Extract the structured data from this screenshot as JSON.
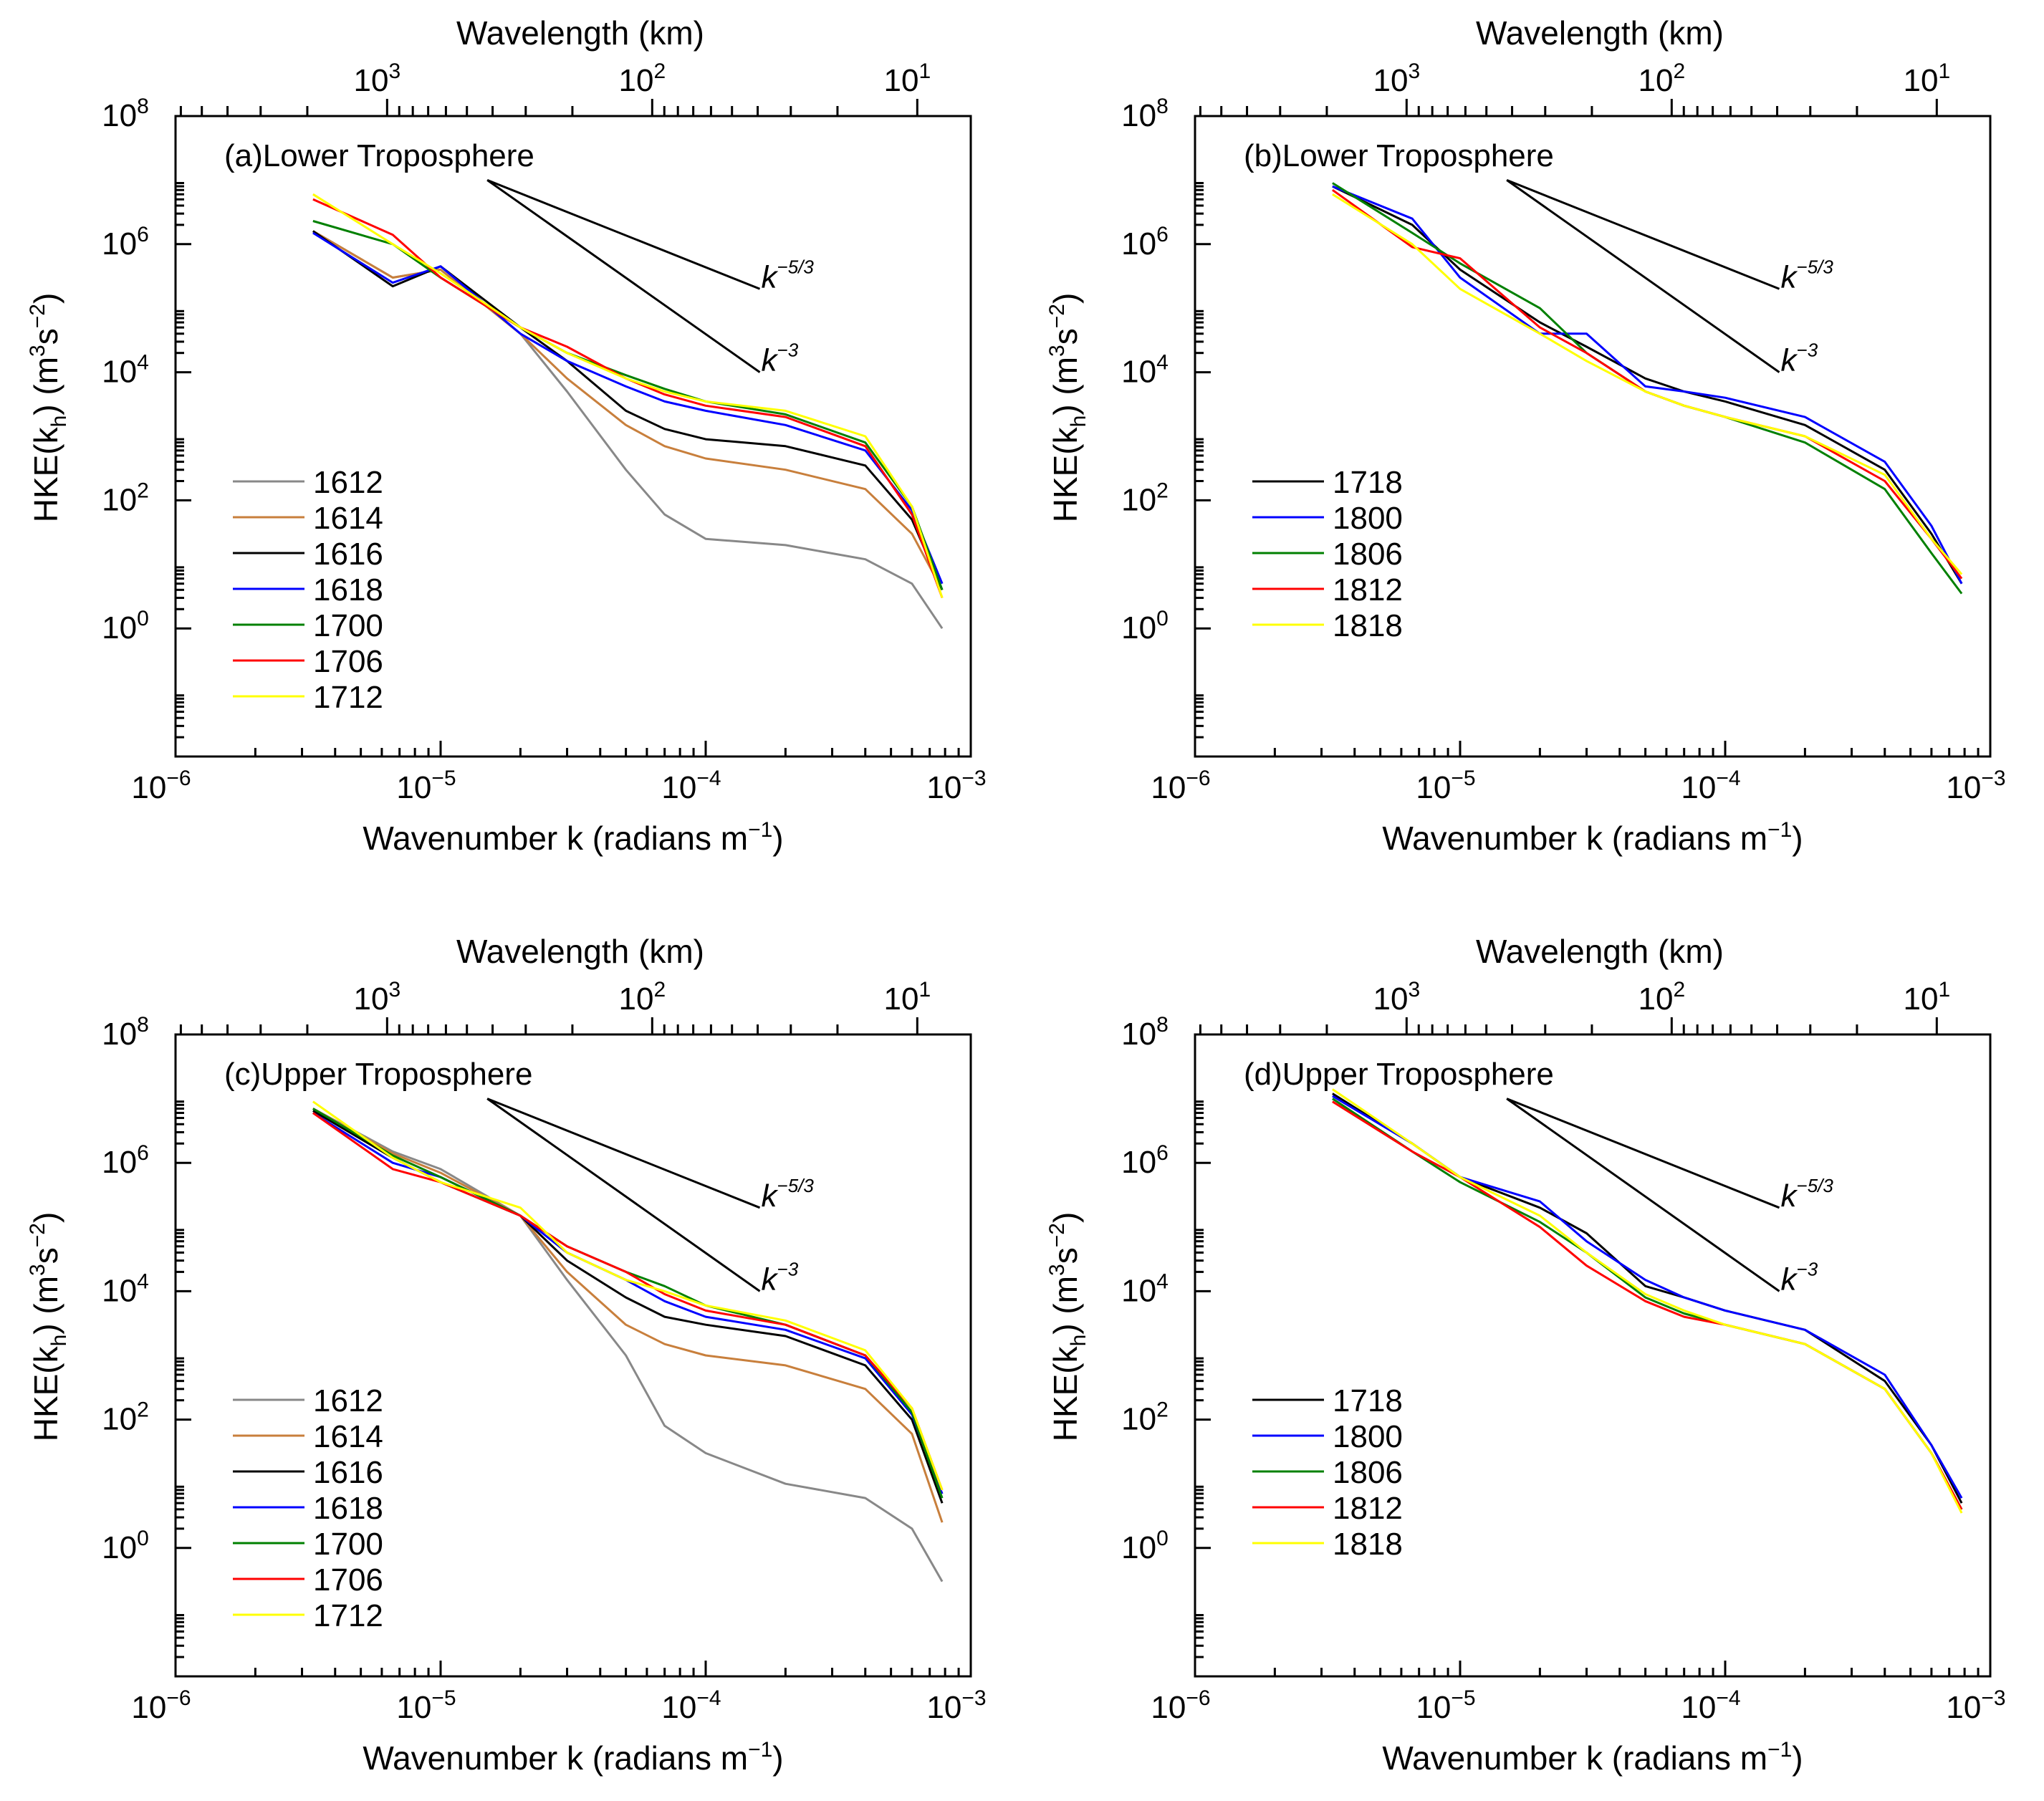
{
  "shared": {
    "top_axis_label": "Wavelength (km)",
    "x_axis_label_main": "Wavenumber k (radians m",
    "x_axis_label_exp": "−1",
    "x_axis_label_close": ")",
    "y_axis_label": {
      "a": "HKE(k",
      "b": "h",
      "c": ") (m",
      "d": "3",
      "e": "s",
      "f": "−2",
      "g": ")"
    },
    "x_ticks": [
      {
        "base": "10",
        "exp": "−6"
      },
      {
        "base": "10",
        "exp": "−5"
      },
      {
        "base": "10",
        "exp": "−4"
      },
      {
        "base": "10",
        "exp": "−3"
      }
    ],
    "top_ticks": [
      {
        "base": "10",
        "exp": "3"
      },
      {
        "base": "10",
        "exp": "2"
      },
      {
        "base": "10",
        "exp": "1"
      }
    ],
    "y_ticks": [
      {
        "base": "10",
        "exp": "0"
      },
      {
        "base": "10",
        "exp": "2"
      },
      {
        "base": "10",
        "exp": "4"
      },
      {
        "base": "10",
        "exp": "6"
      },
      {
        "base": "10",
        "exp": "8"
      }
    ],
    "slope_labels": {
      "k53": {
        "base": "k",
        "exp": "−5/3"
      },
      "k3": {
        "base": "k",
        "exp": "−3"
      }
    }
  },
  "colors": {
    "1612": "#888888",
    "1614": "#c87f3c",
    "1616": "#000000",
    "1618": "#0000ff",
    "1700": "#008000",
    "1706": "#ff0000",
    "1712": "#ffff00",
    "1718": "#000000",
    "1800": "#0000ff",
    "1806": "#008000",
    "1812": "#ff0000",
    "1818": "#ffff00"
  },
  "chart_data": [
    {
      "type": "line",
      "panel": "a",
      "title": "(a)Lower Troposphere",
      "xscale": "log",
      "yscale": "log",
      "xlim": [
        1e-06,
        0.001
      ],
      "ylim": [
        0.01,
        100000000.0
      ],
      "xlabel": "Wavenumber k (radians m−1)",
      "ylabel": "HKE(kh) (m3 s−2)",
      "top_xlabel": "Wavelength (km)",
      "legend": "bottom-left",
      "series": [
        {
          "name": "1612",
          "k": [
            3.3e-06,
            6.6e-06,
            1e-05,
            2e-05,
            3e-05,
            5e-05,
            7e-05,
            0.0001,
            0.0002,
            0.0004,
            0.0006,
            0.00078
          ],
          "hke": [
            1600000.0,
            300000.0,
            400000.0,
            40000.0,
            5000,
            300,
            60,
            25,
            20,
            12,
            5,
            1
          ]
        },
        {
          "name": "1614",
          "k": [
            3.3e-06,
            6.6e-06,
            1e-05,
            2e-05,
            3e-05,
            5e-05,
            7e-05,
            0.0001,
            0.0002,
            0.0004,
            0.0006,
            0.00078
          ],
          "hke": [
            1600000.0,
            300000.0,
            400000.0,
            40000.0,
            8000,
            1500,
            700,
            450,
            300,
            150,
            30,
            4
          ]
        },
        {
          "name": "1616",
          "k": [
            3.3e-06,
            6.6e-06,
            1e-05,
            2e-05,
            3e-05,
            5e-05,
            7e-05,
            0.0001,
            0.0002,
            0.0004,
            0.0006,
            0.00078
          ],
          "hke": [
            1600000.0,
            220000.0,
            450000.0,
            50000.0,
            15000,
            2500,
            1300,
            900,
            700,
            350,
            50,
            4
          ]
        },
        {
          "name": "1618",
          "k": [
            3.3e-06,
            6.6e-06,
            1e-05,
            2e-05,
            3e-05,
            5e-05,
            7e-05,
            0.0001,
            0.0002,
            0.0004,
            0.0006,
            0.00078
          ],
          "hke": [
            1500000.0,
            250000.0,
            450000.0,
            40000.0,
            15000,
            6000,
            3500,
            2500,
            1500,
            600,
            70,
            5
          ]
        },
        {
          "name": "1700",
          "k": [
            3.3e-06,
            6.6e-06,
            1e-05,
            2e-05,
            3e-05,
            5e-05,
            7e-05,
            0.0001,
            0.0002,
            0.0004,
            0.0006,
            0.00078
          ],
          "hke": [
            2300000.0,
            1000000.0,
            300000.0,
            50000.0,
            20000,
            9000,
            5500,
            3500,
            2200,
            800,
            80,
            4
          ]
        },
        {
          "name": "1706",
          "k": [
            3.3e-06,
            6.6e-06,
            1e-05,
            2e-05,
            3e-05,
            5e-05,
            7e-05,
            0.0001,
            0.0002,
            0.0004,
            0.0006,
            0.00078
          ],
          "hke": [
            5000000.0,
            1400000.0,
            300000.0,
            50000.0,
            25000,
            8000,
            4500,
            3000,
            2000,
            700,
            60,
            3
          ]
        },
        {
          "name": "1712",
          "k": [
            3.3e-06,
            6.6e-06,
            1e-05,
            2e-05,
            3e-05,
            5e-05,
            7e-05,
            0.0001,
            0.0002,
            0.0004,
            0.0006,
            0.00078
          ],
          "hke": [
            6000000.0,
            1000000.0,
            350000.0,
            50000.0,
            20000,
            8000,
            5000,
            3500,
            2500,
            1000,
            80,
            3
          ]
        }
      ],
      "reference_lines": [
        {
          "label": "k−5/3",
          "k": [
            1.5e-05,
            0.00016
          ],
          "hke": [
            10000000.0,
            200000.0
          ]
        },
        {
          "label": "k−3",
          "k": [
            1.5e-05,
            0.00016
          ],
          "hke": [
            10000000.0,
            10000.0
          ]
        }
      ]
    },
    {
      "type": "line",
      "panel": "b",
      "title": "(b)Lower Troposphere",
      "xscale": "log",
      "yscale": "log",
      "xlim": [
        1e-06,
        0.001
      ],
      "ylim": [
        0.01,
        100000000.0
      ],
      "xlabel": "Wavenumber k (radians m−1)",
      "ylabel": "HKE(kh) (m3 s−2)",
      "top_xlabel": "Wavelength (km)",
      "legend": "bottom-left",
      "series": [
        {
          "name": "1718",
          "k": [
            3.3e-06,
            6.6e-06,
            1e-05,
            2e-05,
            3e-05,
            5e-05,
            7e-05,
            0.0001,
            0.0002,
            0.0004,
            0.0006,
            0.00078
          ],
          "hke": [
            8000000.0,
            2000000.0,
            400000.0,
            60000.0,
            25000,
            8000,
            5000,
            3500,
            1500,
            300,
            30,
            5
          ]
        },
        {
          "name": "1800",
          "k": [
            3.3e-06,
            6.6e-06,
            1e-05,
            2e-05,
            3e-05,
            5e-05,
            7e-05,
            0.0001,
            0.0002,
            0.0004,
            0.0006,
            0.00078
          ],
          "hke": [
            8000000.0,
            2500000.0,
            300000.0,
            40000.0,
            40000,
            6000,
            5000,
            4000,
            2000,
            400,
            40,
            5
          ]
        },
        {
          "name": "1806",
          "k": [
            3.3e-06,
            6.6e-06,
            1e-05,
            2e-05,
            3e-05,
            5e-05,
            7e-05,
            0.0001,
            0.0002,
            0.0004,
            0.0006,
            0.00078
          ],
          "hke": [
            9000000.0,
            1500000.0,
            500000.0,
            100000.0,
            20000,
            5000,
            3000,
            2000,
            800,
            150,
            15,
            3.5
          ]
        },
        {
          "name": "1812",
          "k": [
            3.3e-06,
            6.6e-06,
            1e-05,
            2e-05,
            3e-05,
            5e-05,
            7e-05,
            0.0001,
            0.0002,
            0.0004,
            0.0006,
            0.00078
          ],
          "hke": [
            7000000.0,
            900000.0,
            600000.0,
            50000.0,
            20000,
            5000,
            3000,
            2000,
            1000,
            200,
            25,
            6
          ]
        },
        {
          "name": "1818",
          "k": [
            3.3e-06,
            6.6e-06,
            1e-05,
            2e-05,
            3e-05,
            5e-05,
            7e-05,
            0.0001,
            0.0002,
            0.0004,
            0.0006,
            0.00078
          ],
          "hke": [
            6000000.0,
            1000000.0,
            200000.0,
            40000.0,
            15000,
            5000,
            3000,
            2000,
            1000,
            250,
            25,
            7
          ]
        }
      ],
      "reference_lines": [
        {
          "label": "k−5/3",
          "k": [
            1.5e-05,
            0.00016
          ],
          "hke": [
            10000000.0,
            200000.0
          ]
        },
        {
          "label": "k−3",
          "k": [
            1.5e-05,
            0.00016
          ],
          "hke": [
            10000000.0,
            10000.0
          ]
        }
      ]
    },
    {
      "type": "line",
      "panel": "c",
      "title": "(c)Upper Troposphere",
      "xscale": "log",
      "yscale": "log",
      "xlim": [
        1e-06,
        0.001
      ],
      "ylim": [
        0.01,
        100000000.0
      ],
      "xlabel": "Wavenumber k (radians m−1)",
      "ylabel": "HKE(kh) (m3 s−2)",
      "top_xlabel": "Wavelength (km)",
      "legend": "bottom-left",
      "series": [
        {
          "name": "1612",
          "k": [
            3.3e-06,
            6.6e-06,
            1e-05,
            2e-05,
            3e-05,
            5e-05,
            7e-05,
            0.0001,
            0.0002,
            0.0004,
            0.0006,
            0.00078
          ],
          "hke": [
            7000000.0,
            1500000.0,
            800000.0,
            150000.0,
            15000,
            1000,
            80,
            30,
            10,
            6,
            2,
            0.3
          ]
        },
        {
          "name": "1614",
          "k": [
            3.3e-06,
            6.6e-06,
            1e-05,
            2e-05,
            3e-05,
            5e-05,
            7e-05,
            0.0001,
            0.0002,
            0.0004,
            0.0006,
            0.00078
          ],
          "hke": [
            7000000.0,
            1400000.0,
            700000.0,
            150000.0,
            20000,
            3000,
            1500,
            1000,
            700,
            300,
            60,
            2.5
          ]
        },
        {
          "name": "1616",
          "k": [
            3.3e-06,
            6.6e-06,
            1e-05,
            2e-05,
            3e-05,
            5e-05,
            7e-05,
            0.0001,
            0.0002,
            0.0004,
            0.0006,
            0.00078
          ],
          "hke": [
            6500000.0,
            1200000.0,
            500000.0,
            150000.0,
            30000,
            8000,
            4000,
            3000,
            2000,
            700,
            100,
            5
          ]
        },
        {
          "name": "1618",
          "k": [
            3.3e-06,
            6.6e-06,
            1e-05,
            2e-05,
            3e-05,
            5e-05,
            7e-05,
            0.0001,
            0.0002,
            0.0004,
            0.0006,
            0.00078
          ],
          "hke": [
            6000000.0,
            1000000.0,
            600000.0,
            150000.0,
            40000,
            15000,
            7000,
            4000,
            2500,
            900,
            120,
            7
          ]
        },
        {
          "name": "1700",
          "k": [
            3.3e-06,
            6.6e-06,
            1e-05,
            2e-05,
            3e-05,
            5e-05,
            7e-05,
            0.0001,
            0.0002,
            0.0004,
            0.0006,
            0.00078
          ],
          "hke": [
            7000000.0,
            1300000.0,
            600000.0,
            150000.0,
            50000,
            20000,
            12000,
            6000,
            3000,
            1000,
            130,
            6
          ]
        },
        {
          "name": "1706",
          "k": [
            3.3e-06,
            6.6e-06,
            1e-05,
            2e-05,
            3e-05,
            5e-05,
            7e-05,
            0.0001,
            0.0002,
            0.0004,
            0.0006,
            0.00078
          ],
          "hke": [
            6000000.0,
            800000.0,
            500000.0,
            150000.0,
            50000,
            20000,
            9000,
            5000,
            3000,
            1000,
            150,
            8
          ]
        },
        {
          "name": "1712",
          "k": [
            3.3e-06,
            6.6e-06,
            1e-05,
            2e-05,
            3e-05,
            5e-05,
            7e-05,
            0.0001,
            0.0002,
            0.0004,
            0.0006,
            0.00078
          ],
          "hke": [
            9000000.0,
            1200000.0,
            500000.0,
            200000.0,
            40000,
            15000,
            10000,
            6000,
            3500,
            1200,
            150,
            8
          ]
        }
      ],
      "reference_lines": [
        {
          "label": "k−5/3",
          "k": [
            1.5e-05,
            0.00016
          ],
          "hke": [
            10000000.0,
            200000.0
          ]
        },
        {
          "label": "k−3",
          "k": [
            1.5e-05,
            0.00016
          ],
          "hke": [
            10000000.0,
            10000.0
          ]
        }
      ]
    },
    {
      "type": "line",
      "panel": "d",
      "title": "(d)Upper Troposphere",
      "xscale": "log",
      "yscale": "log",
      "xlim": [
        1e-06,
        0.001
      ],
      "ylim": [
        0.01,
        100000000.0
      ],
      "xlabel": "Wavenumber k (radians m−1)",
      "ylabel": "HKE(kh) (m3 s−2)",
      "top_xlabel": "Wavelength (km)",
      "legend": "bottom-left",
      "series": [
        {
          "name": "1718",
          "k": [
            3.3e-06,
            6.6e-06,
            1e-05,
            2e-05,
            3e-05,
            5e-05,
            7e-05,
            0.0001,
            0.0002,
            0.0004,
            0.0006,
            0.00078
          ],
          "hke": [
            12000000.0,
            2000000.0,
            600000.0,
            200000.0,
            80000,
            12000,
            8000,
            5000,
            2500,
            400,
            40,
            5
          ]
        },
        {
          "name": "1800",
          "k": [
            3.3e-06,
            6.6e-06,
            1e-05,
            2e-05,
            3e-05,
            5e-05,
            7e-05,
            0.0001,
            0.0002,
            0.0004,
            0.0006,
            0.00078
          ],
          "hke": [
            11000000.0,
            2000000.0,
            600000.0,
            250000.0,
            60000,
            15000,
            8000,
            5000,
            2500,
            500,
            40,
            6
          ]
        },
        {
          "name": "1806",
          "k": [
            3.3e-06,
            6.6e-06,
            1e-05,
            2e-05,
            3e-05,
            5e-05,
            7e-05,
            0.0001,
            0.0002,
            0.0004,
            0.0006,
            0.00078
          ],
          "hke": [
            10000000.0,
            1500000.0,
            500000.0,
            120000.0,
            40000,
            8000,
            4500,
            3000,
            1500,
            300,
            30,
            4
          ]
        },
        {
          "name": "1812",
          "k": [
            3.3e-06,
            6.6e-06,
            1e-05,
            2e-05,
            3e-05,
            5e-05,
            7e-05,
            0.0001,
            0.0002,
            0.0004,
            0.0006,
            0.00078
          ],
          "hke": [
            9000000.0,
            1500000.0,
            600000.0,
            100000.0,
            25000,
            7000,
            4000,
            3000,
            1500,
            300,
            30,
            4
          ]
        },
        {
          "name": "1818",
          "k": [
            3.3e-06,
            6.6e-06,
            1e-05,
            2e-05,
            3e-05,
            5e-05,
            7e-05,
            0.0001,
            0.0002,
            0.0004,
            0.0006,
            0.00078
          ],
          "hke": [
            14000000.0,
            2000000.0,
            600000.0,
            150000.0,
            40000,
            9000,
            5000,
            3000,
            1500,
            300,
            30,
            3.5
          ]
        }
      ],
      "reference_lines": [
        {
          "label": "k−5/3",
          "k": [
            1.5e-05,
            0.00016
          ],
          "hke": [
            10000000.0,
            200000.0
          ]
        },
        {
          "label": "k−3",
          "k": [
            1.5e-05,
            0.00016
          ],
          "hke": [
            10000000.0,
            10000.0
          ]
        }
      ]
    }
  ]
}
